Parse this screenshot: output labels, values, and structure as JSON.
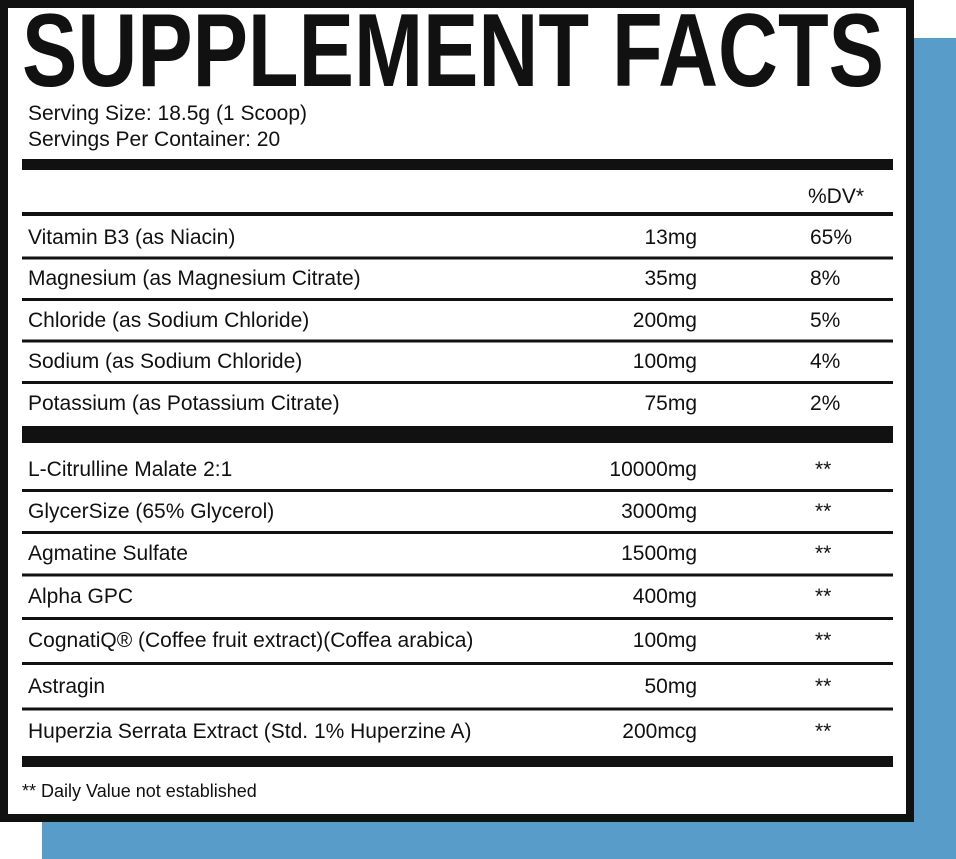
{
  "header": {
    "title": "SUPPLEMENT FACTS"
  },
  "serving": {
    "size": "Serving Size: 18.5g (1 Scoop)",
    "servings": "Servings Per Container: 20"
  },
  "table": {
    "dv_header": "%DV*",
    "vitamins": [
      [
        "Vitamin B3 (as Niacin)",
        "13mg",
        "65%"
      ],
      [
        "Magnesium (as Magnesium Citrate)",
        "35mg",
        "8%"
      ],
      [
        "Chloride (as Sodium Chloride)",
        "200mg",
        "5%"
      ],
      [
        "Sodium (as Sodium Chloride)",
        "100mg",
        "4%"
      ],
      [
        "Potassium (as Potassium Citrate)",
        "75mg",
        "2%"
      ]
    ],
    "other": [
      [
        "L-Citrulline Malate 2:1",
        "10000mg",
        "**"
      ],
      [
        "GlycerSize (65% Glycerol)",
        "3000mg",
        "**"
      ],
      [
        "Agmatine Sulfate",
        "1500mg",
        "**"
      ],
      [
        "Alpha GPC",
        "400mg",
        "**"
      ],
      [
        "CognatiQ® (Coffee fruit extract)(Coffea arabica)",
        "100mg",
        "**"
      ],
      [
        "Astragin",
        "50mg",
        "**"
      ],
      [
        "Huperzia Serrata Extract (Std. 1% Huperzine A)",
        "200mcg",
        "**"
      ]
    ]
  },
  "footnote": "** Daily Value not established"
}
